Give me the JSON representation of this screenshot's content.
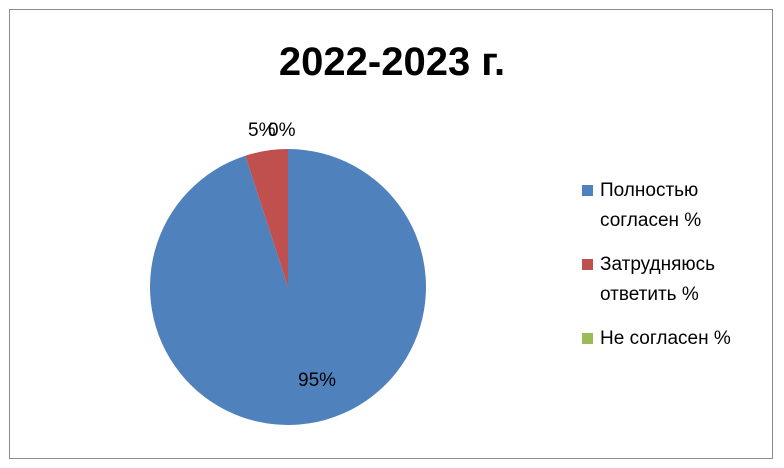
{
  "chart_data": {
    "type": "pie",
    "title": "2022-2023 г.",
    "categories": [
      "Полностью согласен %",
      "Затрудняюсь ответить %",
      "Не согласен %"
    ],
    "values": [
      95,
      5,
      0
    ],
    "data_labels": [
      "95%",
      "5%",
      "0%"
    ],
    "colors": [
      "#4f81bd",
      "#c0504d",
      "#9bbb59"
    ],
    "legend": "right"
  }
}
